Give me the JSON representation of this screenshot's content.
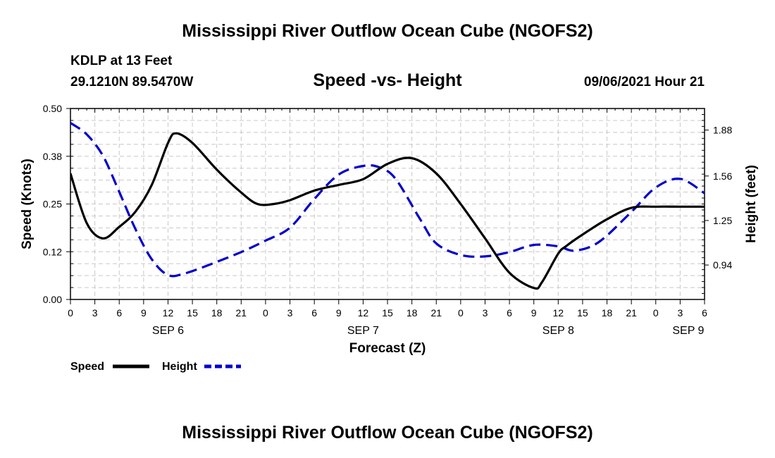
{
  "header": {
    "title": "Mississippi River Outflow Ocean Cube (NGOFS2)",
    "station": "KDLP at 13 Feet",
    "coordinates": "29.1210N  89.5470W",
    "subtitle": "Speed -vs- Height",
    "datetime": "09/06/2021 Hour 21"
  },
  "footer": {
    "title": "Mississippi River Outflow Ocean Cube (NGOFS2)"
  },
  "chart_data": {
    "type": "line",
    "title": "Speed -vs- Height",
    "xlabel": "Forecast (Z)",
    "ylabel_left": "Speed (Knots)",
    "ylabel_right": "Height (feet)",
    "x_range_hours": [
      0,
      78
    ],
    "x_tick_step_hours": 3,
    "x_tick_labels": [
      "0",
      "3",
      "6",
      "9",
      "12",
      "15",
      "18",
      "21",
      "0",
      "3",
      "6",
      "9",
      "12",
      "15",
      "18",
      "21",
      "0",
      "3",
      "6",
      "9",
      "12",
      "15",
      "18",
      "21",
      "0",
      "3",
      "6"
    ],
    "date_labels": [
      {
        "label": "SEP 6",
        "hour": 12
      },
      {
        "label": "SEP 7",
        "hour": 36
      },
      {
        "label": "SEP 8",
        "hour": 60
      },
      {
        "label": "SEP 9",
        "hour": 76
      }
    ],
    "ylim_left": [
      0,
      0.5
    ],
    "yticks_left": [
      "0.00",
      "0.12",
      "0.25",
      "0.38",
      "0.50"
    ],
    "ylim_right": [
      0.7,
      2.03
    ],
    "yticks_right": [
      "0.94",
      "1.25",
      "1.56",
      "1.88"
    ],
    "grid": true,
    "series": [
      {
        "name": "Speed",
        "axis": "left",
        "color": "#000000",
        "style": "solid",
        "x": [
          0,
          2,
          4,
          6,
          8,
          10,
          12,
          13,
          15,
          18,
          21,
          23,
          25,
          27,
          30,
          33,
          36,
          39,
          42,
          45,
          48,
          51,
          54,
          57,
          58,
          60,
          61,
          63,
          66,
          69,
          72,
          75,
          78
        ],
        "values": [
          0.33,
          0.2,
          0.16,
          0.19,
          0.23,
          0.3,
          0.41,
          0.435,
          0.41,
          0.34,
          0.28,
          0.25,
          0.25,
          0.26,
          0.285,
          0.3,
          0.315,
          0.355,
          0.37,
          0.33,
          0.25,
          0.16,
          0.07,
          0.03,
          0.045,
          0.12,
          0.14,
          0.17,
          0.21,
          0.24,
          0.243,
          0.243,
          0.243
        ]
      },
      {
        "name": "Height",
        "axis": "right",
        "color": "#0000cc",
        "style": "dashed",
        "x": [
          0,
          2,
          4,
          6,
          8,
          10,
          12,
          14,
          17,
          21,
          24,
          27,
          30,
          33,
          36,
          38,
          40,
          43,
          45,
          48,
          51,
          54,
          57,
          60,
          62,
          65,
          69,
          72,
          75,
          78
        ],
        "values": [
          1.93,
          1.85,
          1.7,
          1.45,
          1.19,
          0.98,
          0.87,
          0.88,
          0.94,
          1.03,
          1.11,
          1.2,
          1.4,
          1.57,
          1.63,
          1.62,
          1.54,
          1.26,
          1.09,
          1.01,
          1.0,
          1.03,
          1.08,
          1.07,
          1.04,
          1.1,
          1.31,
          1.48,
          1.54,
          1.44
        ]
      }
    ],
    "legend": [
      {
        "label": "Speed",
        "color": "#000000",
        "style": "solid"
      },
      {
        "label": "Height",
        "color": "#0000cc",
        "style": "dashed"
      }
    ]
  }
}
